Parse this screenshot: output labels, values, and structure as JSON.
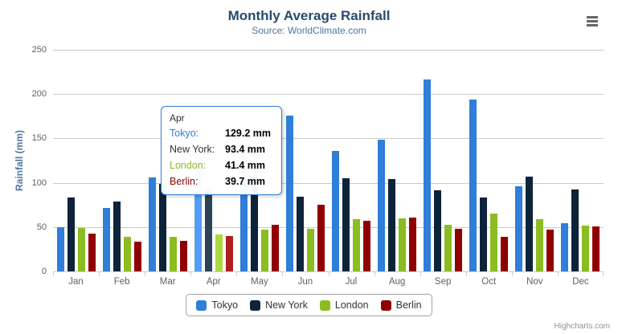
{
  "header": {
    "title": "Monthly Average Rainfall",
    "subtitle": "Source: WorldClimate.com"
  },
  "chart_data": {
    "type": "bar",
    "title": "Monthly Average Rainfall",
    "subtitle": "Source: WorldClimate.com",
    "xlabel": "",
    "ylabel": "Rainfall (mm)",
    "ylim": [
      0,
      250
    ],
    "y_tick_step": 50,
    "grid": "on",
    "legend_position": "bottom",
    "categories": [
      "Jan",
      "Feb",
      "Mar",
      "Apr",
      "May",
      "Jun",
      "Jul",
      "Aug",
      "Sep",
      "Oct",
      "Nov",
      "Dec"
    ],
    "series": [
      {
        "name": "Tokyo",
        "color": "#2f7ed8",
        "hover_color": "#519df4",
        "values": [
          49.9,
          71.5,
          106.4,
          129.2,
          144.0,
          176.0,
          135.6,
          148.5,
          216.4,
          194.1,
          95.6,
          54.4
        ]
      },
      {
        "name": "New York",
        "color": "#0d233a",
        "hover_color": "#2c4257",
        "values": [
          83.6,
          78.8,
          98.5,
          93.4,
          106.0,
          84.5,
          105.0,
          104.3,
          91.2,
          83.5,
          106.6,
          92.3
        ]
      },
      {
        "name": "London",
        "color": "#8bbc21",
        "hover_color": "#a9da3f",
        "values": [
          48.9,
          38.8,
          39.3,
          41.4,
          47.0,
          48.3,
          59.0,
          59.6,
          52.4,
          65.2,
          59.3,
          51.2
        ]
      },
      {
        "name": "Berlin",
        "color": "#910000",
        "hover_color": "#af1e1e",
        "values": [
          42.4,
          33.2,
          34.5,
          39.7,
          52.6,
          75.5,
          57.4,
          60.4,
          47.6,
          39.1,
          46.8,
          51.1
        ]
      }
    ],
    "hovered_category": "Apr",
    "hovered_category_index": 3
  },
  "tooltip": {
    "header": "Apr",
    "rows": [
      {
        "label": "Tokyo:",
        "value": "129.2 mm",
        "color": "#2f7ed8"
      },
      {
        "label": "New York:",
        "value": "93.4 mm",
        "color": "#333333"
      },
      {
        "label": "London:",
        "value": "41.4 mm",
        "color": "#8bbc21"
      },
      {
        "label": "Berlin:",
        "value": "39.7 mm",
        "color": "#910000"
      }
    ]
  },
  "menu": {
    "icon": "hamburger"
  },
  "credits": {
    "label": "Highcharts.com"
  },
  "theme": {
    "title_color": "#274b6d",
    "subtitle_color": "#4d759e",
    "axis_title_color": "#4d759e",
    "axis_label_color": "#606060",
    "grid_color": "#c9c9c9",
    "axis_line_color": "#c0d0e0",
    "tooltip_border": "#2f7ed8"
  }
}
